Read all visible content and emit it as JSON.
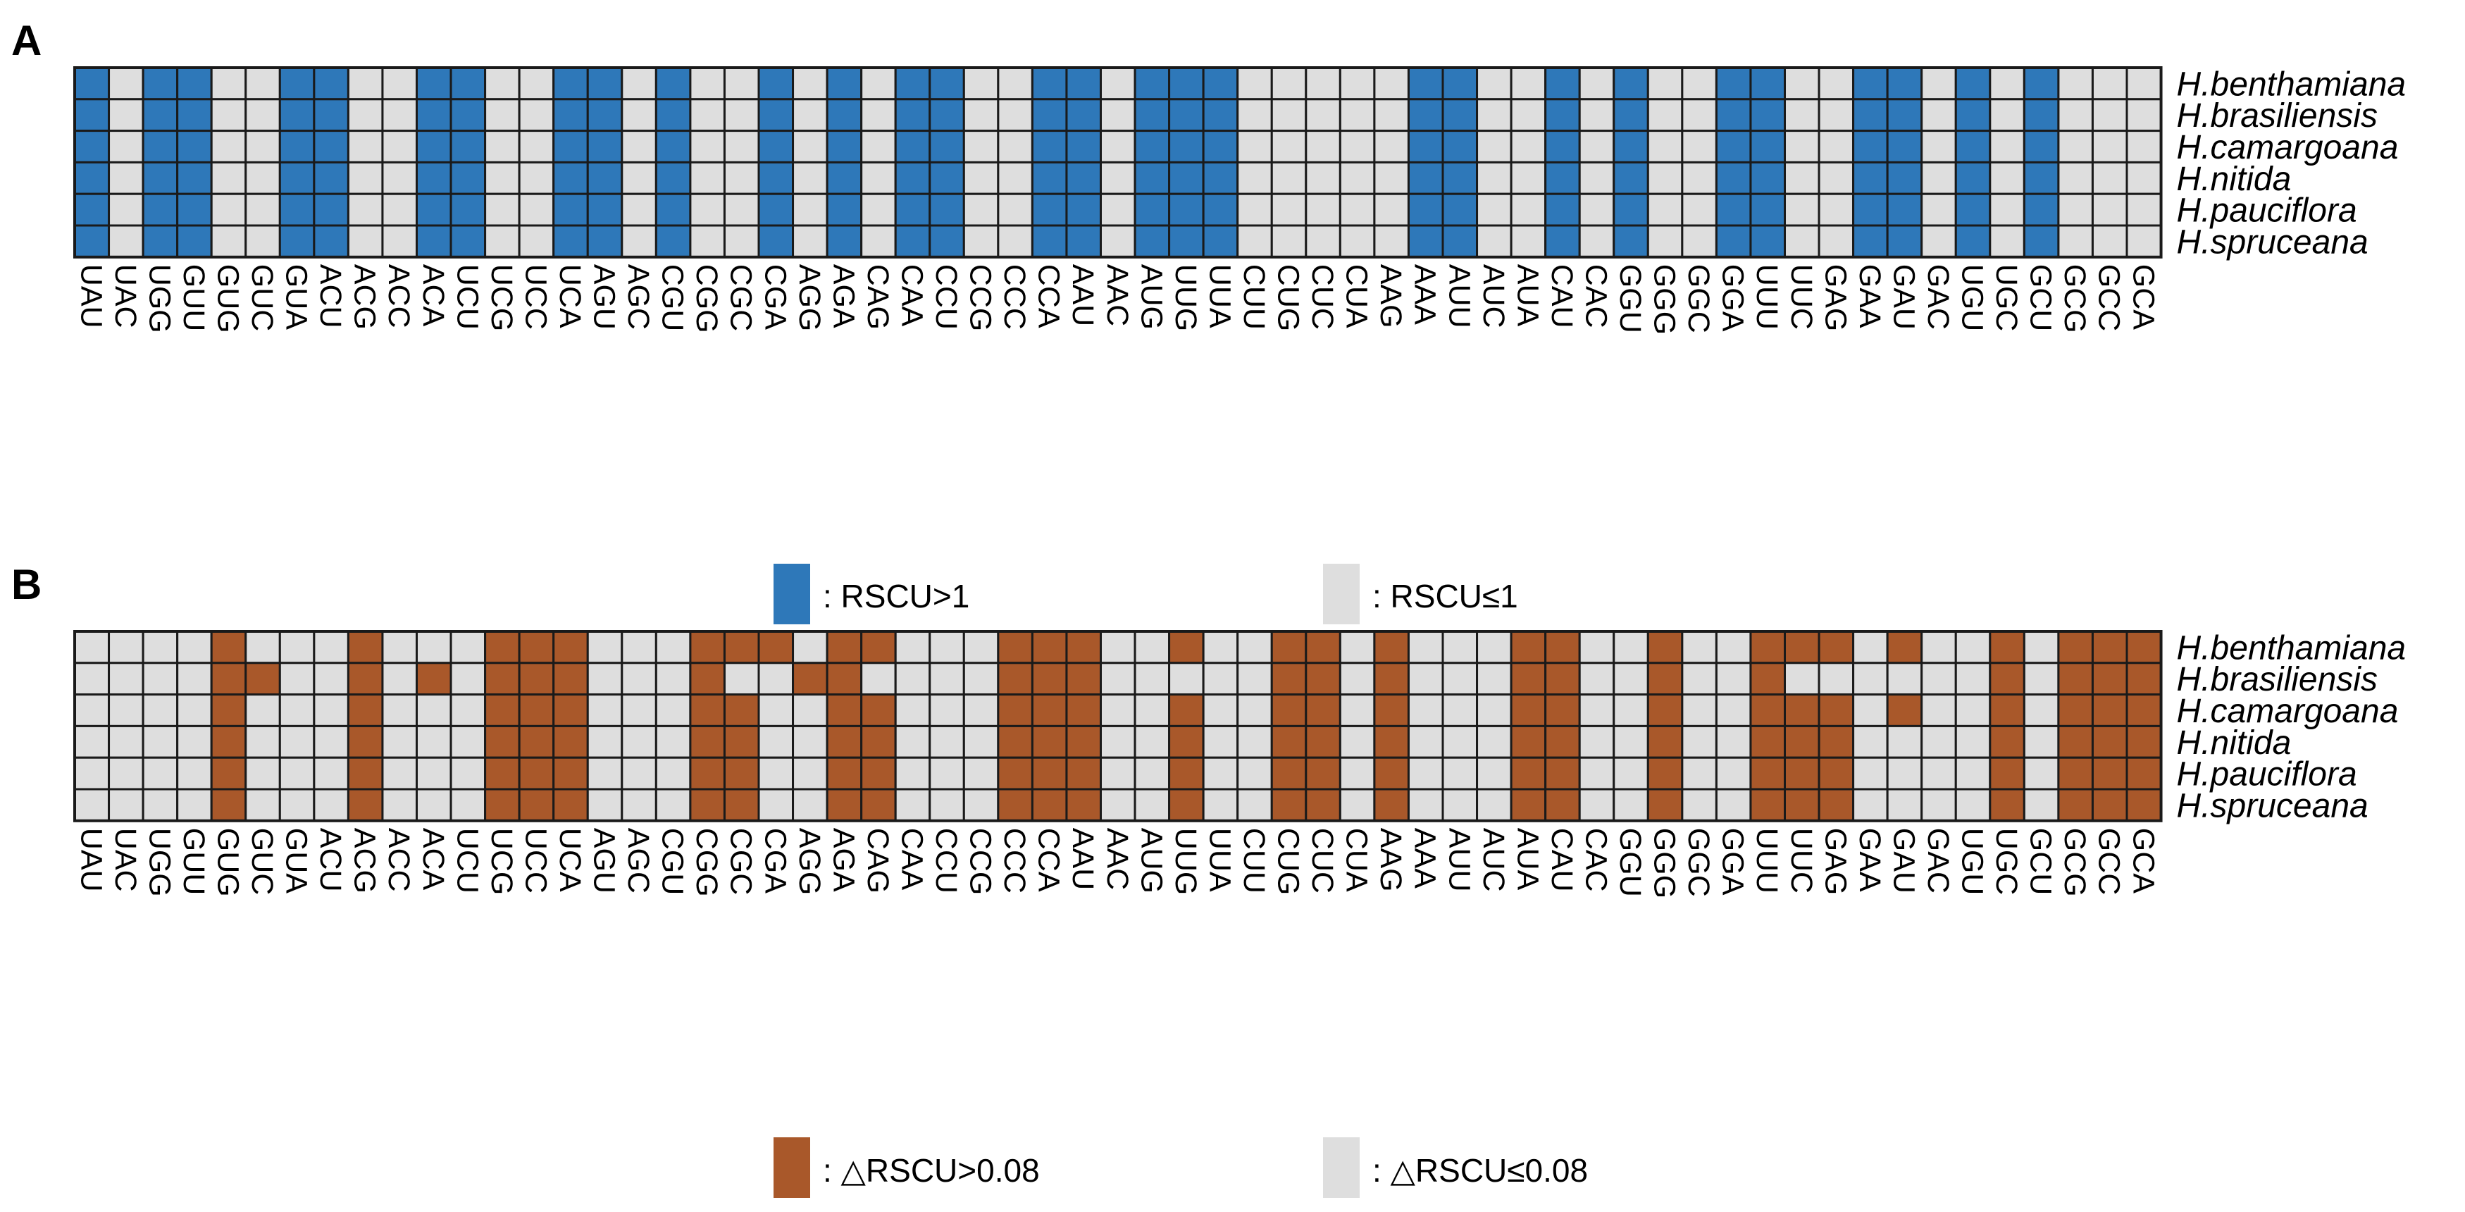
{
  "colors": {
    "panel_a_high": "#2e78b9",
    "panel_b_high": "#a9582a",
    "low": "#dedede",
    "grid_line": "#1a1a1a"
  },
  "chart_data": [
    {
      "panel": "A",
      "type": "heatmap",
      "species": [
        "H.benthamiana",
        "H.brasiliensis",
        "H.camargoana",
        "H.nitida",
        "H.pauciflora",
        "H.spruceana"
      ],
      "codons": [
        "UAU",
        "UAC",
        "UGG",
        "GUU",
        "GUG",
        "GUC",
        "GUA",
        "ACU",
        "ACG",
        "ACC",
        "ACA",
        "UCU",
        "UCG",
        "UCC",
        "UCA",
        "AGU",
        "AGC",
        "CGU",
        "CGG",
        "CGC",
        "CGA",
        "AGG",
        "AGA",
        "CAG",
        "CAA",
        "CCU",
        "CCG",
        "CCC",
        "CCA",
        "AAU",
        "AAC",
        "AUG",
        "UUG",
        "UUA",
        "CUU",
        "CUG",
        "CUC",
        "CUA",
        "AAG",
        "AAA",
        "AUU",
        "AUC",
        "AUA",
        "CAU",
        "CAC",
        "GGU",
        "GGG",
        "GGC",
        "GGA",
        "UUU",
        "UUC",
        "GAG",
        "GAA",
        "GAU",
        "GAC",
        "UGU",
        "UGC",
        "GCU",
        "GCG",
        "GCC",
        "GCA"
      ],
      "high_codons_by_species": [
        [
          "UAU",
          "UGG",
          "GUU",
          "GUA",
          "ACU",
          "ACA",
          "UCU",
          "UCA",
          "AGU",
          "CGU",
          "CGA",
          "AGA",
          "CAA",
          "CCU",
          "CCA",
          "AAU",
          "AUG",
          "UUG",
          "UUA",
          "AAA",
          "AUU",
          "CAU",
          "GGU",
          "GGA",
          "UUU",
          "GAA",
          "GAU",
          "UGU",
          "GCU"
        ],
        [
          "UAU",
          "UGG",
          "GUU",
          "GUA",
          "ACU",
          "ACA",
          "UCU",
          "UCA",
          "AGU",
          "CGU",
          "CGA",
          "AGA",
          "CAA",
          "CCU",
          "CCA",
          "AAU",
          "AUG",
          "UUG",
          "UUA",
          "AAA",
          "AUU",
          "CAU",
          "GGU",
          "GGA",
          "UUU",
          "GAA",
          "GAU",
          "UGU",
          "GCU"
        ],
        [
          "UAU",
          "UGG",
          "GUU",
          "GUA",
          "ACU",
          "ACA",
          "UCU",
          "UCA",
          "AGU",
          "CGU",
          "CGA",
          "AGA",
          "CAA",
          "CCU",
          "CCA",
          "AAU",
          "AUG",
          "UUG",
          "UUA",
          "AAA",
          "AUU",
          "CAU",
          "GGU",
          "GGA",
          "UUU",
          "GAA",
          "GAU",
          "UGU",
          "GCU"
        ],
        [
          "UAU",
          "UGG",
          "GUU",
          "GUA",
          "ACU",
          "ACA",
          "UCU",
          "UCA",
          "AGU",
          "CGU",
          "CGA",
          "AGA",
          "CAA",
          "CCU",
          "CCA",
          "AAU",
          "AUG",
          "UUG",
          "UUA",
          "AAA",
          "AUU",
          "CAU",
          "GGU",
          "GGA",
          "UUU",
          "GAA",
          "GAU",
          "UGU",
          "GCU"
        ],
        [
          "UAU",
          "UGG",
          "GUU",
          "GUA",
          "ACU",
          "ACA",
          "UCU",
          "UCA",
          "AGU",
          "CGU",
          "CGA",
          "AGA",
          "CAA",
          "CCU",
          "CCA",
          "AAU",
          "AUG",
          "UUG",
          "UUA",
          "AAA",
          "AUU",
          "CAU",
          "GGU",
          "GGA",
          "UUU",
          "GAA",
          "GAU",
          "UGU",
          "GCU"
        ],
        [
          "UAU",
          "UGG",
          "GUU",
          "GUA",
          "ACU",
          "ACA",
          "UCU",
          "UCA",
          "AGU",
          "CGU",
          "CGA",
          "AGA",
          "CAA",
          "CCU",
          "CCA",
          "AAU",
          "AUG",
          "UUG",
          "UUA",
          "AAA",
          "AUU",
          "CAU",
          "GGU",
          "GGA",
          "UUU",
          "GAA",
          "GAU",
          "UGU",
          "GCU"
        ]
      ],
      "legend": [
        {
          "label": ": RSCU>1",
          "color_key": "panel_a_high"
        },
        {
          "label": ": RSCU≤1",
          "color_key": "low"
        }
      ]
    },
    {
      "panel": "B",
      "type": "heatmap",
      "species": [
        "H.benthamiana",
        "H.brasiliensis",
        "H.camargoana",
        "H.nitida",
        "H.pauciflora",
        "H.spruceana"
      ],
      "codons": [
        "UAU",
        "UAC",
        "UGG",
        "GUU",
        "GUG",
        "GUC",
        "GUA",
        "ACU",
        "ACG",
        "ACC",
        "ACA",
        "UCU",
        "UCG",
        "UCC",
        "UCA",
        "AGU",
        "AGC",
        "CGU",
        "CGG",
        "CGC",
        "CGA",
        "AGG",
        "AGA",
        "CAG",
        "CAA",
        "CCU",
        "CCG",
        "CCC",
        "CCA",
        "AAU",
        "AAC",
        "AUG",
        "UUG",
        "UUA",
        "CUU",
        "CUG",
        "CUC",
        "CUA",
        "AAG",
        "AAA",
        "AUU",
        "AUC",
        "AUA",
        "CAU",
        "CAC",
        "GGU",
        "GGG",
        "GGC",
        "GGA",
        "UUU",
        "UUC",
        "GAG",
        "GAA",
        "GAU",
        "GAC",
        "UGU",
        "UGC",
        "GCU",
        "GCG",
        "GCC",
        "GCA"
      ],
      "high_codons_by_species": [
        [
          "GUG",
          "ACG",
          "UCG",
          "UCC",
          "UCA",
          "CGG",
          "CGC",
          "CGA",
          "AGA",
          "CAG",
          "CCC",
          "CCA",
          "AAU",
          "UUG",
          "CUG",
          "CUC",
          "AAG",
          "AUA",
          "CAU",
          "GGG",
          "UUU",
          "UUC",
          "GAG",
          "GAU",
          "UGC",
          "GCG",
          "GCC",
          "GCA"
        ],
        [
          "GUG",
          "GUC",
          "ACG",
          "ACA",
          "UCG",
          "UCC",
          "UCA",
          "CGG",
          "AGG",
          "AGA",
          "CCC",
          "CCA",
          "AAU",
          "CUG",
          "CUC",
          "AAG",
          "AUA",
          "CAU",
          "GGG",
          "UUU",
          "UGC",
          "GCG",
          "GCC",
          "GCA"
        ],
        [
          "GUG",
          "ACG",
          "UCG",
          "UCC",
          "UCA",
          "CGG",
          "CGC",
          "AGA",
          "CAG",
          "CCC",
          "CCA",
          "AAU",
          "UUG",
          "CUG",
          "CUC",
          "AAG",
          "AUA",
          "CAU",
          "GGG",
          "UUU",
          "UUC",
          "GAG",
          "GAU",
          "UGC",
          "GCG",
          "GCC",
          "GCA"
        ],
        [
          "GUG",
          "ACG",
          "UCG",
          "UCC",
          "UCA",
          "CGG",
          "CGC",
          "AGA",
          "CAG",
          "CCC",
          "CCA",
          "AAU",
          "UUG",
          "CUG",
          "CUC",
          "AAG",
          "AUA",
          "CAU",
          "GGG",
          "UUU",
          "UUC",
          "GAG",
          "UGC",
          "GCG",
          "GCC",
          "GCA"
        ],
        [
          "GUG",
          "ACG",
          "UCG",
          "UCC",
          "UCA",
          "CGG",
          "CGC",
          "AGA",
          "CAG",
          "CCC",
          "CCA",
          "AAU",
          "UUG",
          "CUG",
          "CUC",
          "AAG",
          "AUA",
          "CAU",
          "GGG",
          "UUU",
          "UUC",
          "GAG",
          "UGC",
          "GCG",
          "GCC",
          "GCA"
        ],
        [
          "GUG",
          "ACG",
          "UCG",
          "UCC",
          "UCA",
          "CGG",
          "CGC",
          "AGA",
          "CAG",
          "CCC",
          "CCA",
          "AAU",
          "UUG",
          "CUG",
          "CUC",
          "AAG",
          "AUA",
          "CAU",
          "GGG",
          "UUU",
          "UUC",
          "GAG",
          "UGC",
          "GCG",
          "GCC",
          "GCA"
        ]
      ],
      "legend": [
        {
          "label": ": △RSCU>0.08",
          "color_key": "panel_b_high"
        },
        {
          "label": ": △RSCU≤0.08",
          "color_key": "low"
        }
      ]
    }
  ]
}
